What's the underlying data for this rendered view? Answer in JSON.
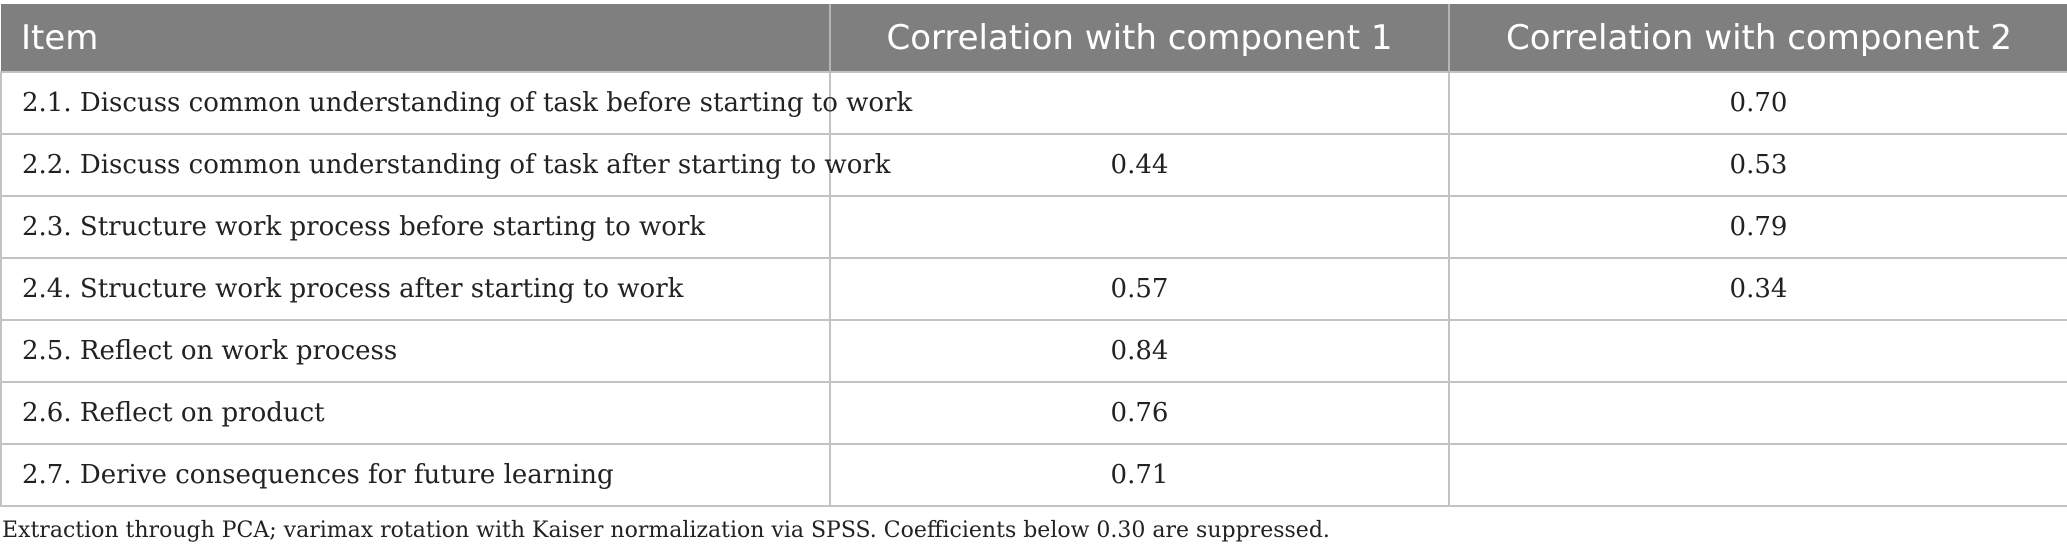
{
  "table": {
    "headers": [
      "Item",
      "Correlation with component 1",
      "Correlation with component 2"
    ],
    "rows": [
      [
        "2.1. Discuss common understanding of task before starting to work",
        "",
        "0.70"
      ],
      [
        "2.2. Discuss common understanding of task after starting to work",
        "0.44",
        "0.53"
      ],
      [
        "2.3. Structure work process before starting to work",
        "",
        "0.79"
      ],
      [
        "2.4. Structure work process after starting to work",
        "0.57",
        "0.34"
      ],
      [
        "2.5. Reflect on work process",
        "0.84",
        ""
      ],
      [
        "2.6. Reflect on product",
        "0.76",
        ""
      ],
      [
        "2.7. Derive consequences for future learning",
        "0.71",
        ""
      ]
    ]
  },
  "footnote": "Extraction through PCA; varimax rotation with Kaiser normalization via SPSS. Coefficients below 0.30 are suppressed."
}
